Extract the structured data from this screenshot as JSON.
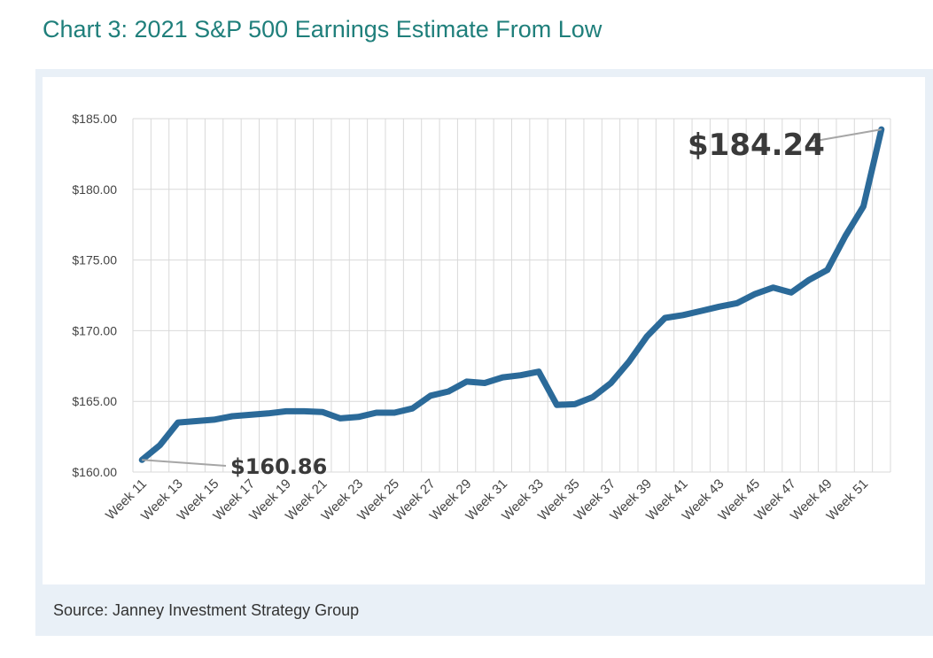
{
  "title": "Chart 3:  2021 S&P 500 Earnings Estimate From Low",
  "source": "Source: Janney Investment Strategy Group",
  "colors": {
    "title": "#1f7f7b",
    "line": "#2b6a99",
    "grid": "#d9d9d9",
    "panel": "#e9f0f7"
  },
  "chart_data": {
    "type": "line",
    "title": "2021 S&P 500 Earnings Estimate From Low",
    "xlabel": "",
    "ylabel": "",
    "ylim": [
      160,
      185
    ],
    "yticks": [
      160,
      165,
      170,
      175,
      180,
      185
    ],
    "ytick_labels": [
      "$160.00",
      "$165.00",
      "$170.00",
      "$175.00",
      "$180.00",
      "$185.00"
    ],
    "grid": true,
    "categories": [
      "Week 11",
      "Week 12",
      "Week 13",
      "Week 14",
      "Week 15",
      "Week 16",
      "Week 17",
      "Week 18",
      "Week 19",
      "Week 20",
      "Week 21",
      "Week 22",
      "Week 23",
      "Week 24",
      "Week 25",
      "Week 26",
      "Week 27",
      "Week 28",
      "Week 29",
      "Week 30",
      "Week 31",
      "Week 32",
      "Week 33",
      "Week 34",
      "Week 35",
      "Week 36",
      "Week 37",
      "Week 38",
      "Week 39",
      "Week 40",
      "Week 41",
      "Week 42",
      "Week 43",
      "Week 44",
      "Week 45",
      "Week 46",
      "Week 47",
      "Week 48",
      "Week 49",
      "Week 50",
      "Week 51",
      "Week 52"
    ],
    "xtick_labels": [
      "Week 11",
      "Week 13",
      "Week 15",
      "Week 17",
      "Week 19",
      "Week 21",
      "Week 23",
      "Week 25",
      "Week 27",
      "Week 29",
      "Week 31",
      "Week 33",
      "Week 35",
      "Week 37",
      "Week 39",
      "Week 41",
      "Week 43",
      "Week 45",
      "Week 47",
      "Week 49",
      "Week 51"
    ],
    "series": [
      {
        "name": "2021 S&P 500 Earnings Estimate",
        "values": [
          160.86,
          161.9,
          163.5,
          163.6,
          163.7,
          163.95,
          164.05,
          164.15,
          164.3,
          164.3,
          164.25,
          163.8,
          163.9,
          164.2,
          164.2,
          164.5,
          165.4,
          165.7,
          166.4,
          166.3,
          166.7,
          166.85,
          167.1,
          164.75,
          164.8,
          165.3,
          166.3,
          167.8,
          169.6,
          170.9,
          171.1,
          171.4,
          171.7,
          171.95,
          172.6,
          173.05,
          172.7,
          173.6,
          174.3,
          176.7,
          178.8,
          184.24
        ]
      }
    ],
    "annotations": [
      {
        "label": "$160.86",
        "index": 0
      },
      {
        "label": "$184.24",
        "index": 41
      }
    ]
  }
}
